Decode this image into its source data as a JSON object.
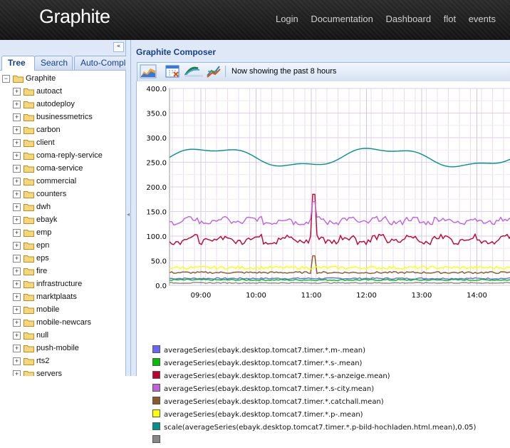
{
  "header": {
    "brand": "Graphite",
    "nav": [
      "Login",
      "Documentation",
      "Dashboard",
      "flot",
      "events"
    ]
  },
  "left_panel": {
    "tabs": [
      "Tree",
      "Search",
      "Auto-Complete"
    ],
    "active_tab": "Tree",
    "root": "Graphite",
    "items": [
      "autoact",
      "autodeploy",
      "businessmetrics",
      "carbon",
      "client",
      "coma-reply-service",
      "coma-service",
      "commercial",
      "counters",
      "dwh",
      "ebayk",
      "emp",
      "epn",
      "eps",
      "fire",
      "infrastructure",
      "marktplaats",
      "mobile",
      "mobile-newcars",
      "null",
      "push-mobile",
      "rts2",
      "servers"
    ]
  },
  "composer": {
    "title": "Graphite Composer",
    "status": "Now showing the past 8 hours",
    "toolbar_icons": [
      "graph-options-icon",
      "calendar-icon",
      "recent-data-icon",
      "url-icon"
    ]
  },
  "chart_data": {
    "type": "line",
    "x_ticks": [
      "09:00",
      "10:00",
      "11:00",
      "12:00",
      "13:00",
      "14:00"
    ],
    "ylim": [
      0,
      400
    ],
    "y_ticks": [
      "400.0",
      "350.0",
      "300.0",
      "250.0",
      "200.0",
      "150.0",
      "100.0",
      "50.0",
      "0.0"
    ],
    "grid": true,
    "series": [
      {
        "name": "averageSeries(ebayk.desktop.tomcat7.timer.*.m-.mean)",
        "color": "#6666ff",
        "level": 14,
        "noise": 1.5
      },
      {
        "name": "averageSeries(ebayk.desktop.tomcat7.timer.*.s-.mean)",
        "color": "#00c000",
        "level": 11,
        "noise": 1.5
      },
      {
        "name": "averageSeries(ebayk.desktop.tomcat7.timer.*.s-anzeige.mean)",
        "color": "#c00030",
        "level": 92,
        "noise": 6
      },
      {
        "name": "averageSeries(ebayk.desktop.tomcat7.timer.*.s-city.mean)",
        "color": "#c060e0",
        "level": 130,
        "noise": 5
      },
      {
        "name": "averageSeries(ebayk.desktop.tomcat7.timer.*.catchall.mean)",
        "color": "#8b5a2b",
        "level": 26,
        "noise": 2
      },
      {
        "name": "averageSeries(ebayk.desktop.tomcat7.timer.*.p-.mean)",
        "color": "#ffff00",
        "level": 36,
        "noise": 3
      },
      {
        "name": "scale(averageSeries(ebayk.desktop.tomcat7.timer.*.p-bild-hochladen.html.mean),0.05)",
        "color": "#009090",
        "level": 260,
        "noise": 18
      },
      {
        "name": "",
        "color": "#888888",
        "level": 5,
        "noise": 1
      }
    ]
  }
}
